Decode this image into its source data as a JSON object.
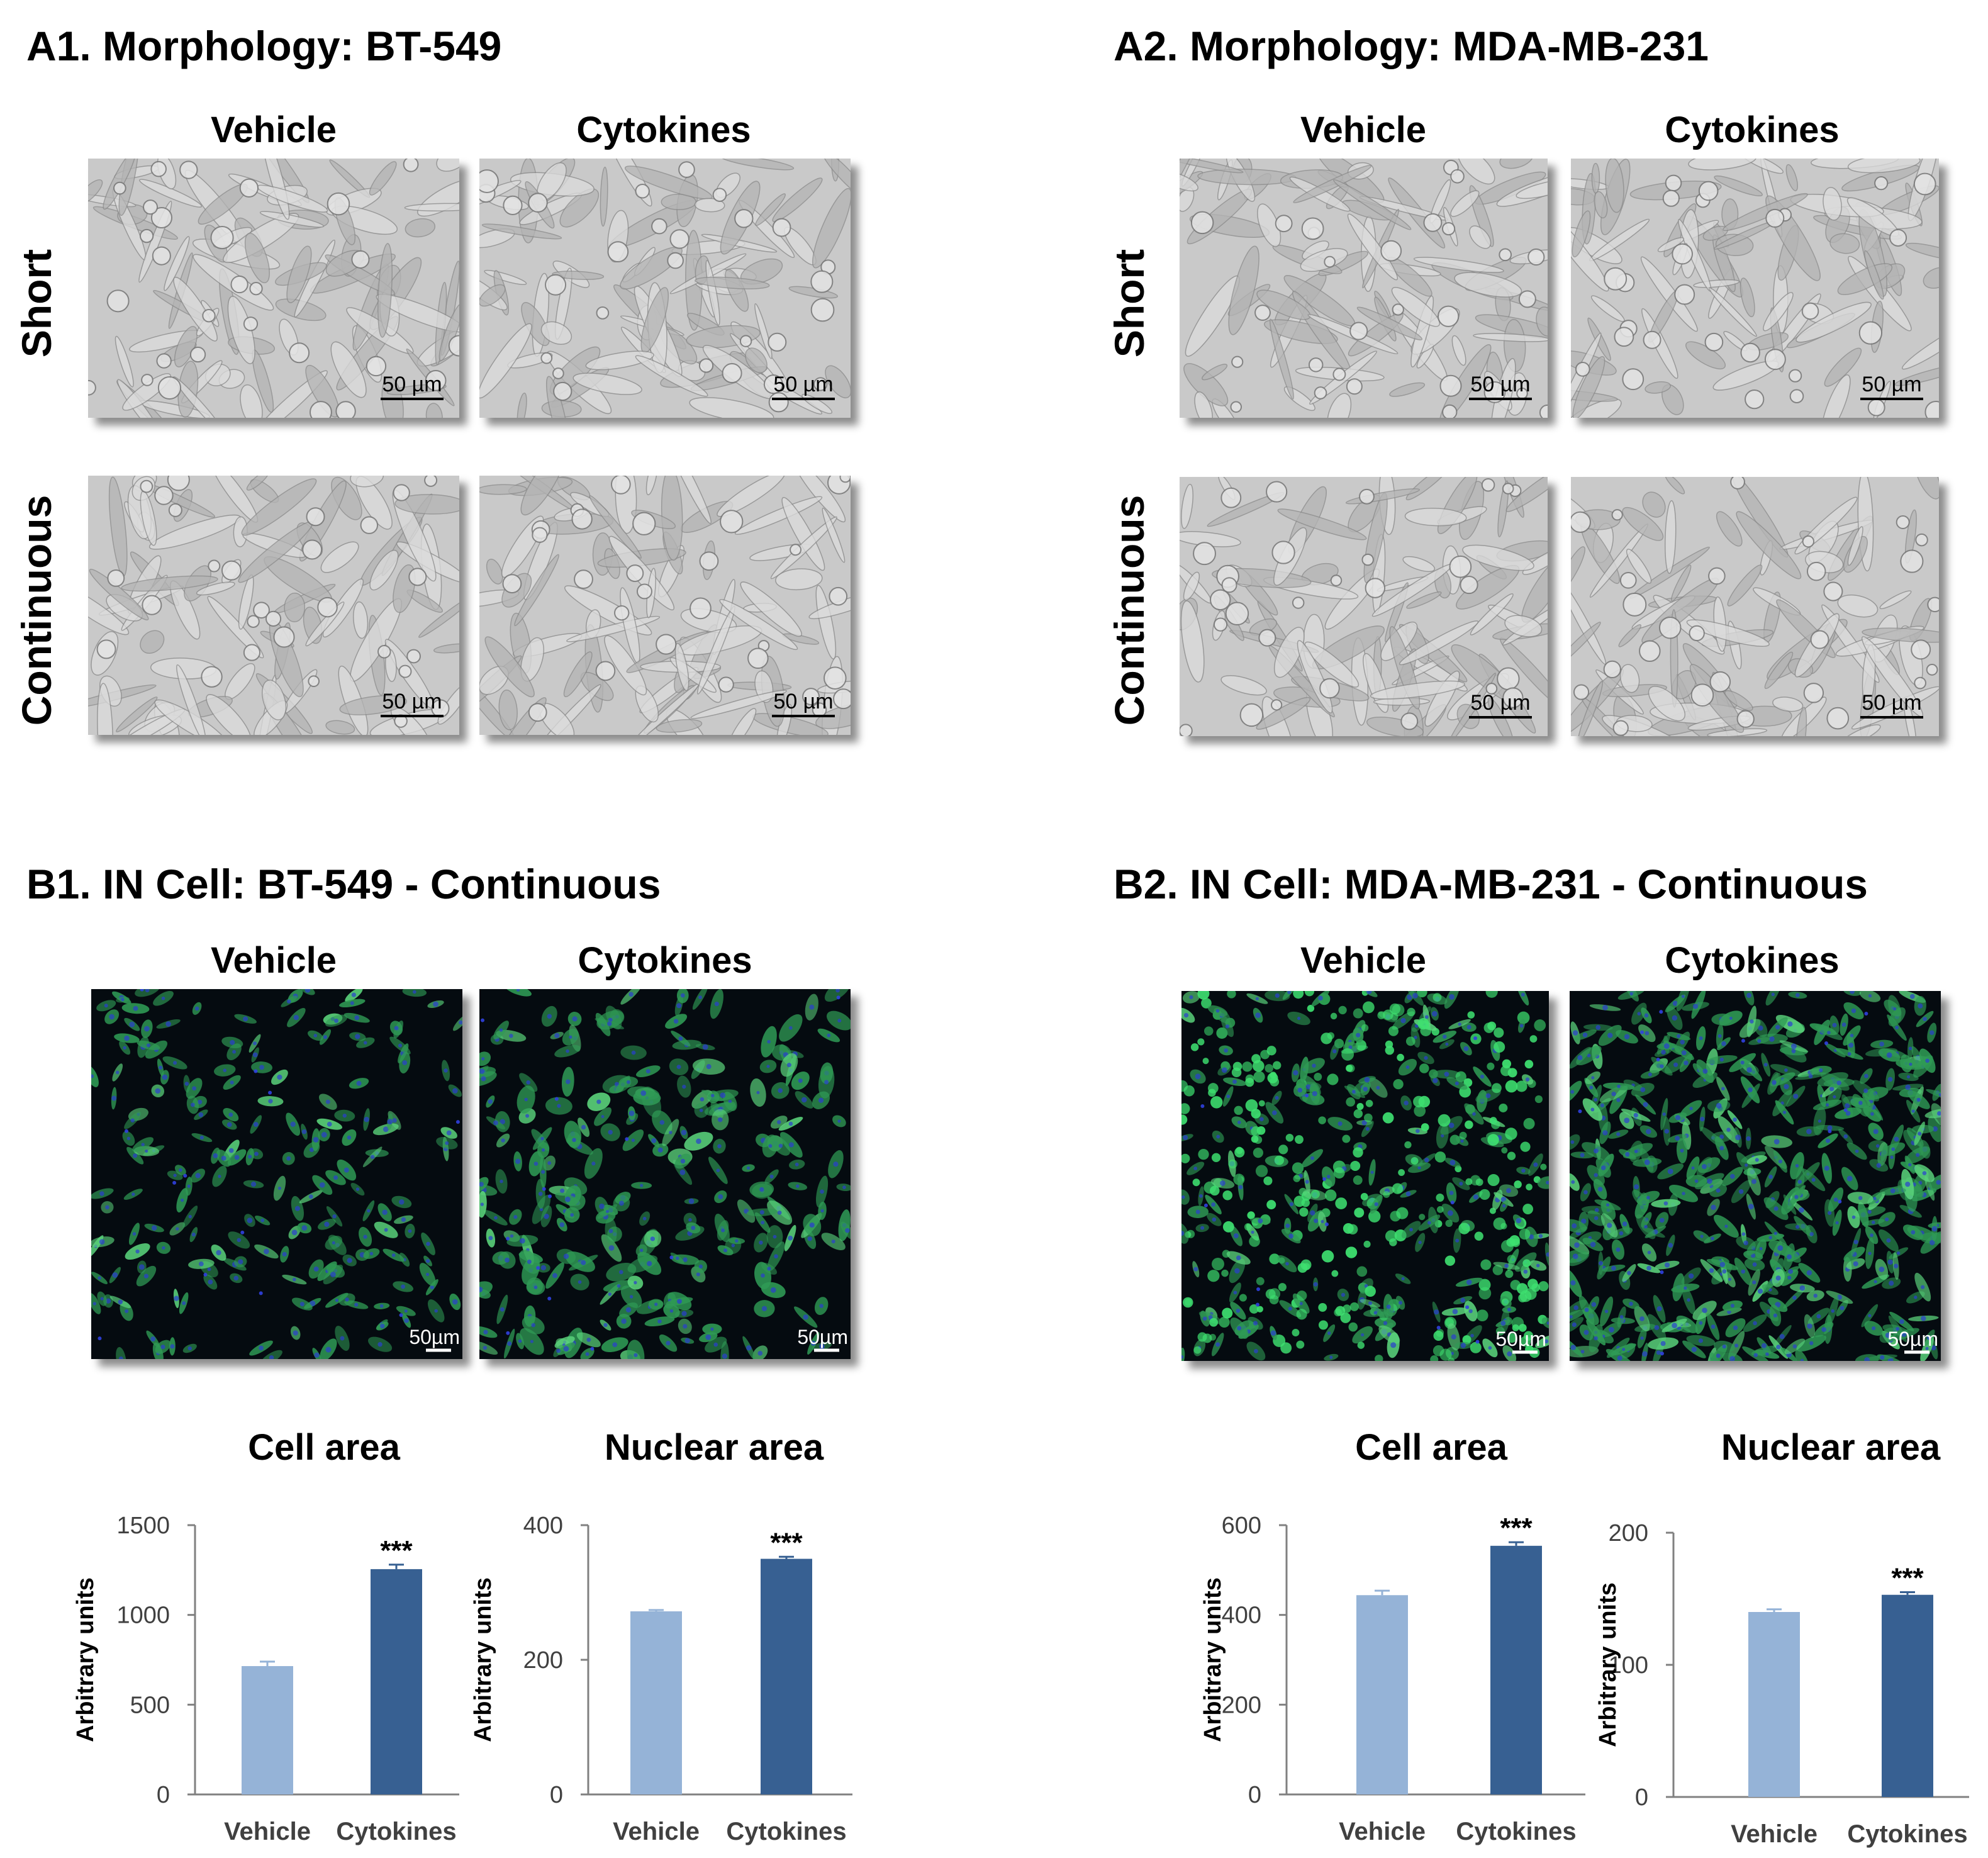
{
  "panels": {
    "a1": {
      "title": "A1. Morphology: BT-549",
      "col_labels": [
        "Vehicle",
        "Cytokines"
      ],
      "row_labels": [
        "Short",
        "Continuous"
      ],
      "scale_bar_labels": [
        "50 µm",
        "50 µm",
        "50 µm",
        "50 µm"
      ]
    },
    "a2": {
      "title": "A2. Morphology: MDA-MB-231",
      "col_labels": [
        "Vehicle",
        "Cytokines"
      ],
      "row_labels": [
        "Short",
        "Continuous"
      ],
      "scale_bar_labels": [
        "50 µm",
        "50 µm",
        "50 µm",
        "50 µm"
      ]
    },
    "b1": {
      "title": "B1. IN Cell: BT-549 - Continuous",
      "col_labels": [
        "Vehicle",
        "Cytokines"
      ],
      "scale_bar_labels": [
        "50µm",
        "50µm"
      ]
    },
    "b2": {
      "title": "B2. IN Cell: MDA-MB-231 - Continuous",
      "col_labels": [
        "Vehicle",
        "Cytokines"
      ],
      "scale_bar_labels": [
        "50µm",
        "50µm"
      ]
    }
  },
  "colors": {
    "vehicle_bar": "#95b3d7",
    "cytokines_bar": "#376092",
    "phase_bg": "#c9c9c9",
    "fluor_bg": "#050b10",
    "fluor_green": "#3fd86a",
    "fluor_blue": "#2a3fd0"
  },
  "chart_data": [
    {
      "type": "bar",
      "panel": "B1",
      "title": "Cell area",
      "ylabel": "Arbitrary units",
      "categories": [
        "Vehicle",
        "Cytokines"
      ],
      "values": [
        715,
        1255
      ],
      "errors": [
        25,
        25
      ],
      "significance": [
        "",
        "***"
      ],
      "ylim": [
        0,
        1500
      ],
      "yticks": [
        0,
        500,
        1000,
        1500
      ]
    },
    {
      "type": "bar",
      "panel": "B1",
      "title": "Nuclear area",
      "ylabel": "Arbitrary units",
      "categories": [
        "Vehicle",
        "Cytokines"
      ],
      "values": [
        272,
        350
      ],
      "errors": [
        2,
        3
      ],
      "significance": [
        "",
        "***"
      ],
      "ylim": [
        0,
        400
      ],
      "yticks": [
        0,
        200,
        400
      ]
    },
    {
      "type": "bar",
      "panel": "B2",
      "title": "Cell area",
      "ylabel": "Arbitrary units",
      "categories": [
        "Vehicle",
        "Cytokines"
      ],
      "values": [
        444,
        554
      ],
      "errors": [
        10,
        8
      ],
      "significance": [
        "",
        "***"
      ],
      "ylim": [
        0,
        600
      ],
      "yticks": [
        0,
        200,
        400,
        600
      ]
    },
    {
      "type": "bar",
      "panel": "B2",
      "title": "Nuclear area",
      "ylabel": "Arbitrary units",
      "categories": [
        "Vehicle",
        "Cytokines"
      ],
      "values": [
        140,
        153
      ],
      "errors": [
        2,
        2
      ],
      "significance": [
        "",
        "***"
      ],
      "ylim": [
        0,
        200
      ],
      "yticks": [
        0,
        100,
        200
      ]
    }
  ]
}
